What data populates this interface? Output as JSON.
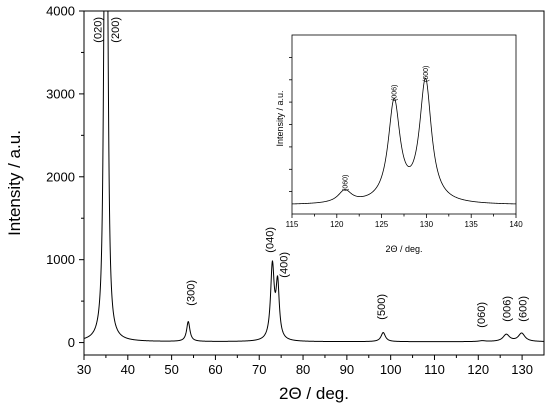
{
  "chart_data": [
    {
      "type": "line",
      "panel": "main",
      "xlabel": "2Θ / deg.",
      "ylabel": "Intensity / a.u.",
      "xlim": [
        30,
        135
      ],
      "ylim": [
        -150,
        4000
      ],
      "x_ticks": [
        30,
        40,
        50,
        60,
        70,
        80,
        90,
        100,
        110,
        120,
        130
      ],
      "y_ticks": [
        0,
        1000,
        2000,
        3000,
        4000
      ],
      "grid": false,
      "baseline": 10,
      "peaks": [
        {
          "label": "(020)",
          "x": 34.7,
          "y": 4000,
          "width": 0.35
        },
        {
          "label": "(200)",
          "x": 35.3,
          "y": 4000,
          "width": 0.35
        },
        {
          "label": "(300)",
          "x": 53.8,
          "y": 250,
          "width": 0.45
        },
        {
          "label": "(040)",
          "x": 73.0,
          "y": 900,
          "width": 0.5
        },
        {
          "label": "(400)",
          "x": 74.2,
          "y": 670,
          "width": 0.45
        },
        {
          "label": "(500)",
          "x": 98.3,
          "y": 120,
          "width": 0.6
        },
        {
          "label": "(060)",
          "x": 120.9,
          "y": 20,
          "width": 0.9
        },
        {
          "label": "(006)",
          "x": 126.4,
          "y": 95,
          "width": 0.9
        },
        {
          "label": "(600)",
          "x": 129.9,
          "y": 110,
          "width": 0.9
        }
      ]
    },
    {
      "type": "line",
      "panel": "inset",
      "xlabel": "2Θ / deg.",
      "ylabel": "Intensity / a.u.",
      "xlim": [
        115,
        140
      ],
      "ylim": [
        0,
        100
      ],
      "x_ticks": [
        115,
        120,
        125,
        130,
        135,
        140
      ],
      "grid": false,
      "baseline": 5,
      "peaks": [
        {
          "label": "(060)",
          "x": 120.9,
          "y": 12,
          "width": 0.9
        },
        {
          "label": "(006)",
          "x": 126.4,
          "y": 61,
          "width": 0.8
        },
        {
          "label": "(600)",
          "x": 129.9,
          "y": 73,
          "width": 0.8
        }
      ]
    }
  ]
}
